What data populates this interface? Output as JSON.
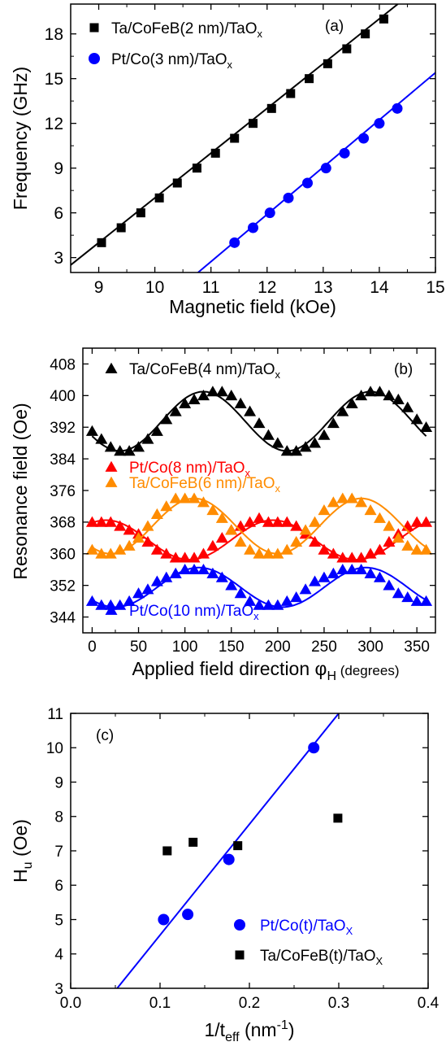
{
  "chart_data": [
    {
      "panel_label": "(a)",
      "type": "scatter",
      "xlabel": "Magnetic field (kOe)",
      "ylabel": "Frequency (GHz)",
      "xlim": [
        8.5,
        15
      ],
      "ylim": [
        2,
        20
      ],
      "xticks": [
        9,
        10,
        11,
        12,
        13,
        14,
        15
      ],
      "yticks": [
        3,
        6,
        9,
        12,
        15,
        18
      ],
      "grid": false,
      "legend_position": "top-left",
      "series": [
        {
          "name_main": "Ta/CoFeB(2 nm)/TaO",
          "name_sub": "x",
          "marker": "square",
          "color": "#000000",
          "x": [
            9.05,
            9.4,
            9.75,
            10.08,
            10.4,
            10.75,
            11.08,
            11.42,
            11.75,
            12.08,
            12.42,
            12.75,
            13.08,
            13.42,
            13.75,
            14.08
          ],
          "y": [
            4,
            5,
            6,
            7,
            8,
            9,
            10,
            11,
            12,
            13,
            14,
            15,
            16,
            17,
            18,
            19
          ],
          "fit": {
            "x": [
              8.5,
              14.33
            ],
            "y": [
              2.5,
              20
            ]
          }
        },
        {
          "name_main": "Pt/Co(3 nm)/TaO",
          "name_sub": "x",
          "marker": "circle",
          "color": "#0000ff",
          "x": [
            11.42,
            11.75,
            12.05,
            12.38,
            12.72,
            13.05,
            13.38,
            13.72,
            14.0,
            14.32
          ],
          "y": [
            4,
            5,
            6,
            7,
            8,
            9,
            10,
            11,
            12,
            13
          ],
          "fit": {
            "x": [
              10.77,
              15.0
            ],
            "y": [
              2,
              15.4
            ]
          }
        }
      ]
    },
    {
      "panel_label": "(b)",
      "type": "scatter",
      "xlabel_main": "Applied field direction φ",
      "xlabel_sub": "H",
      "xlabel_tail": " (degrees)",
      "ylabel": "Resonance field (Oe)",
      "xlim": [
        -10,
        370
      ],
      "ylim": [
        340,
        412
      ],
      "xticks": [
        0,
        50,
        100,
        150,
        200,
        250,
        300,
        350
      ],
      "yticks": [
        344,
        352,
        360,
        368,
        376,
        384,
        392,
        400,
        408
      ],
      "grid": false,
      "legend_position": "inline",
      "series": [
        {
          "name_main": "Ta/CoFeB(4 nm)/TaO",
          "name_sub": "x",
          "marker": "triangle",
          "color": "#000000",
          "mean": 393.5,
          "amplitude": 7.5,
          "phase": 120,
          "x_step": 10,
          "y": [
            391,
            389,
            387,
            386,
            386,
            387,
            389,
            391,
            394,
            396,
            398,
            399,
            400,
            401,
            401,
            400,
            398,
            396,
            393,
            390,
            388,
            386,
            386,
            387,
            388,
            390,
            393,
            396,
            398,
            400,
            401,
            401,
            400,
            399,
            397,
            394,
            392
          ]
        },
        {
          "name_main": "Pt/Co(8 nm)/TaO",
          "name_sub": "x",
          "marker": "triangle",
          "color": "#ff0000",
          "mean": 363.5,
          "amplitude": 5,
          "phase": 195,
          "x_step": 10,
          "y": [
            368,
            368,
            368,
            367,
            366,
            365,
            363,
            361,
            360,
            359,
            359,
            359,
            360,
            362,
            364,
            366,
            367,
            368,
            369,
            368,
            368,
            368,
            367,
            365,
            363,
            361,
            360,
            359,
            359,
            359,
            360,
            361,
            363,
            365,
            367,
            368,
            368
          ]
        },
        {
          "name_main": "Ta/CoFeB(6 nm)/TaO",
          "name_sub": "x",
          "marker": "triangle",
          "color": "#ff8c00",
          "mean": 367,
          "amplitude": 7,
          "phase": 110,
          "x_step": 10,
          "y": [
            361,
            360,
            360,
            361,
            362,
            364,
            367,
            370,
            372,
            374,
            374,
            374,
            373,
            371,
            369,
            366,
            363,
            361,
            360,
            360,
            360,
            361,
            363,
            366,
            368,
            371,
            373,
            374,
            374,
            373,
            371,
            369,
            367,
            364,
            362,
            361,
            361
          ]
        },
        {
          "name_main": "Pt/Co(10 nm)/TaO",
          "name_sub": "x",
          "marker": "triangle",
          "color": "#0000ff",
          "mean": 351.5,
          "amplitude": 5,
          "phase": 115,
          "x_step": 10,
          "y": [
            348,
            347,
            347,
            347,
            348,
            350,
            351,
            353,
            354,
            355,
            356,
            356,
            356,
            355,
            354,
            352,
            350,
            348,
            347,
            347,
            347,
            348,
            349,
            351,
            353,
            354,
            355,
            356,
            356,
            356,
            355,
            354,
            352,
            350,
            349,
            348,
            348
          ]
        }
      ]
    },
    {
      "panel_label": "(c)",
      "type": "scatter",
      "xlabel_main": "1/t",
      "xlabel_sub": "eff",
      "xlabel_tail": " (nm",
      "xlabel_sup": "-1",
      "xlabel_end": ")",
      "ylabel_main": "H",
      "ylabel_sub": "u",
      "ylabel_tail": " (Oe)",
      "xlim": [
        0.0,
        0.4
      ],
      "ylim": [
        3,
        11
      ],
      "xticks": [
        0.0,
        0.1,
        0.2,
        0.3,
        0.4
      ],
      "xtick_labels": [
        "0.0",
        "0.1",
        "0.2",
        "0.3",
        "0.4"
      ],
      "yticks": [
        3,
        4,
        5,
        6,
        7,
        8,
        9,
        10,
        11
      ],
      "grid": false,
      "legend_position": "bottom-right",
      "series": [
        {
          "name_main": "Pt/Co(t)/TaO",
          "name_sub": "X",
          "marker": "circle",
          "color": "#0000ff",
          "x": [
            0.104,
            0.131,
            0.177,
            0.272
          ],
          "y": [
            5.0,
            5.15,
            6.75,
            10.0
          ],
          "fit": {
            "x": [
              0.052,
              0.3
            ],
            "y": [
              3.0,
              11.0
            ]
          }
        },
        {
          "name_main": "Ta/CoFeB(t)/TaO",
          "name_sub": "X",
          "marker": "square",
          "color": "#000000",
          "x": [
            0.108,
            0.137,
            0.187,
            0.299
          ],
          "y": [
            7.0,
            7.25,
            7.15,
            7.95
          ]
        }
      ]
    }
  ]
}
